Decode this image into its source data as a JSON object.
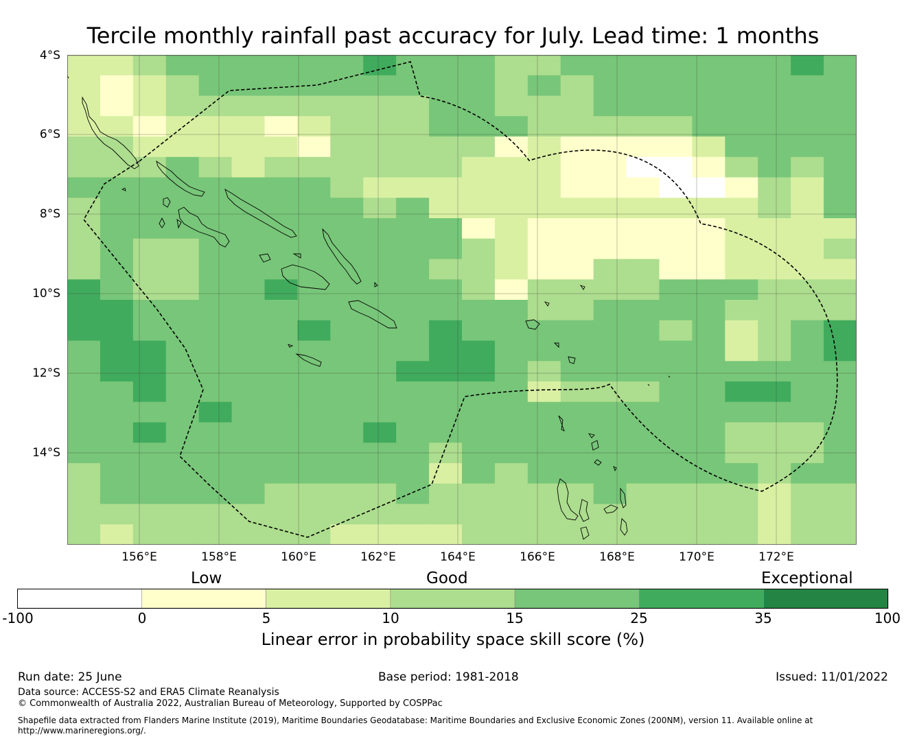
{
  "title": "Tercile monthly rainfall past accuracy for July. Lead time: 1 months",
  "map": {
    "lat_labels": [
      "4°S",
      "6°S",
      "8°S",
      "10°S",
      "12°S",
      "14°S"
    ],
    "lon_labels": [
      "156°E",
      "158°E",
      "160°E",
      "162°E",
      "164°E",
      "166°E",
      "168°E",
      "170°E",
      "172°E"
    ],
    "bins_legend": [
      {
        "range": "-100 to 0",
        "color": "#ffffff"
      },
      {
        "range": "0 to 5",
        "color": "#ffffcc"
      },
      {
        "range": "5 to 10",
        "color": "#d9f0a3"
      },
      {
        "range": "10 to 15",
        "color": "#addd8e"
      },
      {
        "range": "15 to 25",
        "color": "#78c679"
      },
      {
        "range": "25 to 35",
        "color": "#41ab5d"
      },
      {
        "range": "35 to 100",
        "color": "#238443"
      }
    ],
    "grid_bin_index": [
      [
        2,
        2,
        3,
        4,
        4,
        4,
        4,
        4,
        4,
        5,
        4,
        4,
        4,
        3,
        3,
        4,
        4,
        4,
        4,
        4,
        4,
        4,
        5,
        4
      ],
      [
        2,
        1,
        2,
        3,
        4,
        4,
        4,
        4,
        4,
        4,
        4,
        4,
        4,
        3,
        4,
        3,
        4,
        4,
        4,
        4,
        4,
        4,
        4,
        4
      ],
      [
        2,
        1,
        2,
        3,
        3,
        3,
        3,
        3,
        3,
        3,
        3,
        4,
        4,
        3,
        3,
        3,
        4,
        4,
        4,
        4,
        4,
        4,
        4,
        4
      ],
      [
        2,
        2,
        1,
        2,
        2,
        2,
        1,
        2,
        3,
        3,
        3,
        4,
        4,
        4,
        3,
        3,
        3,
        3,
        3,
        4,
        4,
        4,
        4,
        4
      ],
      [
        3,
        3,
        2,
        2,
        2,
        2,
        2,
        1,
        3,
        3,
        3,
        3,
        3,
        1,
        2,
        1,
        1,
        1,
        1,
        2,
        4,
        4,
        4,
        4
      ],
      [
        3,
        3,
        3,
        4,
        3,
        2,
        3,
        3,
        3,
        3,
        3,
        3,
        2,
        2,
        2,
        1,
        1,
        0,
        0,
        1,
        3,
        4,
        3,
        4
      ],
      [
        4,
        4,
        4,
        4,
        4,
        4,
        4,
        4,
        3,
        2,
        2,
        2,
        2,
        2,
        2,
        1,
        1,
        1,
        0,
        0,
        1,
        3,
        2,
        4
      ],
      [
        3,
        4,
        4,
        4,
        4,
        4,
        4,
        4,
        4,
        3,
        4,
        2,
        2,
        2,
        2,
        2,
        2,
        2,
        2,
        2,
        2,
        3,
        2,
        4
      ],
      [
        3,
        4,
        4,
        4,
        4,
        4,
        4,
        4,
        4,
        4,
        4,
        4,
        1,
        2,
        1,
        1,
        1,
        1,
        1,
        1,
        2,
        2,
        2,
        2
      ],
      [
        3,
        4,
        3,
        3,
        4,
        4,
        4,
        4,
        4,
        4,
        4,
        4,
        3,
        2,
        1,
        1,
        1,
        1,
        1,
        1,
        2,
        2,
        2,
        3
      ],
      [
        3,
        4,
        3,
        3,
        4,
        4,
        4,
        4,
        4,
        4,
        4,
        3,
        3,
        2,
        1,
        1,
        3,
        3,
        1,
        1,
        2,
        2,
        2,
        2
      ],
      [
        5,
        4,
        3,
        3,
        4,
        4,
        5,
        4,
        4,
        4,
        4,
        4,
        3,
        1,
        3,
        3,
        3,
        3,
        4,
        4,
        4,
        3,
        3,
        3
      ],
      [
        5,
        5,
        4,
        4,
        4,
        4,
        4,
        4,
        4,
        4,
        4,
        4,
        4,
        4,
        3,
        3,
        4,
        4,
        4,
        4,
        3,
        3,
        3,
        3
      ],
      [
        5,
        5,
        4,
        4,
        4,
        4,
        4,
        5,
        4,
        4,
        4,
        5,
        4,
        4,
        4,
        4,
        4,
        4,
        3,
        4,
        2,
        3,
        4,
        5
      ],
      [
        4,
        5,
        5,
        4,
        4,
        4,
        4,
        4,
        4,
        4,
        4,
        5,
        5,
        4,
        4,
        4,
        4,
        4,
        4,
        4,
        2,
        3,
        4,
        5
      ],
      [
        4,
        5,
        5,
        4,
        4,
        4,
        4,
        4,
        4,
        4,
        5,
        5,
        5,
        4,
        3,
        4,
        4,
        4,
        4,
        4,
        4,
        4,
        4,
        4
      ],
      [
        4,
        4,
        5,
        4,
        4,
        4,
        4,
        4,
        4,
        4,
        4,
        4,
        4,
        4,
        2,
        3,
        3,
        3,
        4,
        4,
        5,
        5,
        4,
        4
      ],
      [
        4,
        4,
        4,
        4,
        5,
        4,
        4,
        4,
        4,
        4,
        4,
        4,
        4,
        4,
        4,
        4,
        4,
        4,
        4,
        4,
        4,
        4,
        4,
        4
      ],
      [
        4,
        4,
        5,
        4,
        4,
        4,
        4,
        4,
        4,
        5,
        4,
        4,
        4,
        4,
        4,
        4,
        4,
        4,
        4,
        4,
        3,
        3,
        3,
        4
      ],
      [
        4,
        4,
        4,
        4,
        4,
        4,
        4,
        4,
        4,
        4,
        4,
        3,
        4,
        4,
        4,
        4,
        4,
        4,
        4,
        4,
        3,
        3,
        3,
        4
      ],
      [
        3,
        4,
        4,
        4,
        4,
        4,
        4,
        4,
        4,
        4,
        4,
        2,
        4,
        3,
        4,
        4,
        4,
        4,
        4,
        4,
        4,
        3,
        4,
        4
      ],
      [
        3,
        4,
        4,
        4,
        4,
        4,
        3,
        3,
        3,
        3,
        4,
        3,
        3,
        3,
        3,
        3,
        4,
        3,
        3,
        3,
        3,
        2,
        3,
        3
      ],
      [
        3,
        3,
        3,
        3,
        3,
        3,
        3,
        3,
        3,
        3,
        3,
        3,
        3,
        3,
        3,
        3,
        3,
        3,
        3,
        3,
        3,
        2,
        3,
        3
      ],
      [
        3,
        2,
        3,
        3,
        3,
        3,
        3,
        3,
        2,
        2,
        2,
        2,
        3,
        3,
        3,
        3,
        3,
        3,
        3,
        3,
        3,
        2,
        3,
        3
      ]
    ]
  },
  "legend": {
    "categories": [
      "Low",
      "Good",
      "Exceptional"
    ],
    "ticks": [
      "-100",
      "0",
      "5",
      "10",
      "15",
      "25",
      "35",
      "100"
    ],
    "colors": [
      "#ffffff",
      "#ffffcc",
      "#d9f0a3",
      "#addd8e",
      "#78c679",
      "#41ab5d",
      "#238443"
    ],
    "title": "Linear error in probability space skill score (%)"
  },
  "footer": {
    "run_date": "Run date: 25 June",
    "base_period": "Base period: 1981-2018",
    "issued": "Issued: 11/01/2022",
    "data_source": "Data source: ACCESS-S2 and ERA5 Climate Reanalysis",
    "copyright": "© Commonwealth of Australia 2022, Australian Bureau of Meteorology, Supported by COSPPac",
    "shapefile_line1": "Shapefile data extracted from Flanders Marine Institute (2019), Maritime Boundaries Geodatabase: Maritime Boundaries and Exclusive Economic Zones (200NM), version 11. Available online at",
    "shapefile_line2": "http://www.marineregions.org/."
  }
}
